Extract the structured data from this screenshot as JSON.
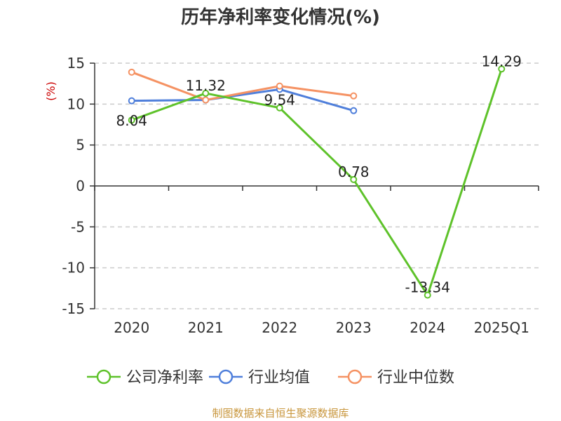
{
  "title": "历年净利率变化情况(%)",
  "source": "制图数据来自恒生聚源数据库",
  "colors": {
    "company": "#5ec22a",
    "industry_avg": "#4f7fdb",
    "industry_median": "#f59263",
    "grid": "#cccccc",
    "axis": "#333333",
    "unit": "#cc0000",
    "source": "#c8963c"
  },
  "chart_data": {
    "type": "line",
    "title": "历年净利率变化情况(%)",
    "ylabel": "(%)",
    "xlabel": "",
    "categories": [
      "2020",
      "2021",
      "2022",
      "2023",
      "2024",
      "2025Q1"
    ],
    "ylim": [
      -15,
      15
    ],
    "yticks": [
      15,
      10,
      5,
      0,
      -5,
      -10,
      -15
    ],
    "grid": true,
    "legend_position": "bottom",
    "series": [
      {
        "name": "公司净利率",
        "color_key": "company",
        "values": [
          8.04,
          11.32,
          9.54,
          0.78,
          -13.34,
          14.29
        ],
        "labels": [
          "8.04",
          "11.32",
          "9.54",
          "0.78",
          "-13.34",
          "14.29"
        ]
      },
      {
        "name": "行业均值",
        "color_key": "industry_avg",
        "values": [
          10.4,
          10.5,
          11.8,
          9.2,
          null,
          null
        ]
      },
      {
        "name": "行业中位数",
        "color_key": "industry_median",
        "values": [
          13.9,
          10.5,
          12.2,
          11.0,
          null,
          null
        ]
      }
    ]
  }
}
